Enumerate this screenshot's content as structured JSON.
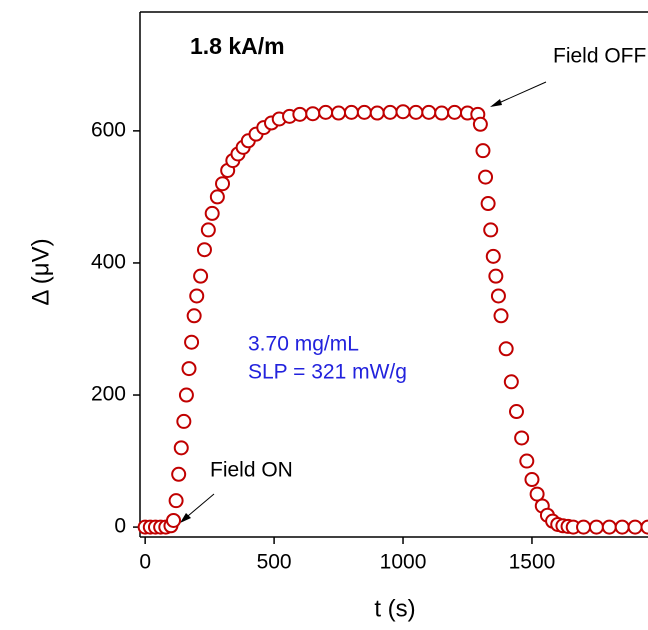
{
  "chart_data": {
    "type": "scatter",
    "x_label": "t (s)",
    "y_label": "Δ (μV)",
    "annotations": [
      "1.8 kA/m",
      "Field OFF",
      "Field ON",
      "3.70 mg/mL",
      "SLP = 321 mW/g"
    ],
    "xlim": [
      -20,
      1950
    ],
    "ylim": [
      -15,
      780
    ],
    "xticks": [
      0,
      500,
      1000,
      1500
    ],
    "yticks": [
      0,
      200,
      400,
      600
    ],
    "color": "#c00000",
    "x": [
      0,
      20,
      40,
      60,
      80,
      100,
      110,
      120,
      130,
      140,
      150,
      160,
      170,
      180,
      190,
      200,
      215,
      230,
      245,
      260,
      280,
      300,
      320,
      340,
      360,
      380,
      400,
      430,
      460,
      490,
      520,
      560,
      600,
      650,
      700,
      750,
      800,
      850,
      900,
      950,
      1000,
      1050,
      1100,
      1150,
      1200,
      1250,
      1290,
      1300,
      1310,
      1320,
      1330,
      1340,
      1350,
      1360,
      1370,
      1380,
      1400,
      1420,
      1440,
      1460,
      1480,
      1500,
      1520,
      1540,
      1560,
      1580,
      1600,
      1620,
      1640,
      1660,
      1700,
      1750,
      1800,
      1850,
      1900,
      1950
    ],
    "values": [
      0,
      0,
      0,
      0,
      0,
      2,
      10,
      40,
      80,
      120,
      160,
      200,
      240,
      280,
      320,
      350,
      380,
      420,
      450,
      475,
      500,
      520,
      540,
      555,
      565,
      575,
      585,
      595,
      605,
      612,
      618,
      622,
      625,
      626,
      628,
      627,
      628,
      628,
      627,
      628,
      629,
      628,
      628,
      627,
      628,
      627,
      625,
      610,
      570,
      530,
      490,
      450,
      410,
      380,
      350,
      320,
      270,
      220,
      175,
      135,
      100,
      72,
      50,
      32,
      18,
      9,
      4,
      2,
      1,
      0,
      0,
      0,
      0,
      0,
      0,
      0
    ]
  }
}
